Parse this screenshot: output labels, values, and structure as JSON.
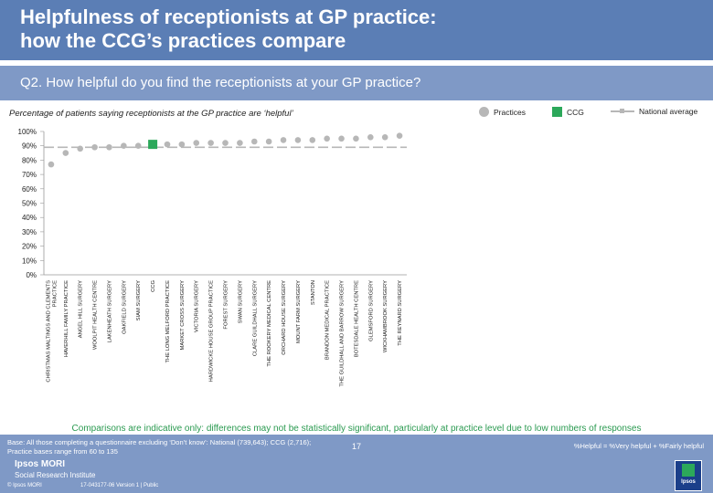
{
  "title": {
    "line1": "Helpfulness of receptionists at GP practice:",
    "line2": "how the CCG’s practices compare"
  },
  "question": "Q2. How helpful do you find the receptionists at your GP practice?",
  "subtitle": "Percentage of patients saying receptionists at the GP practice are ‘helpful’",
  "legend": {
    "practices": "Practices",
    "ccg": "CCG",
    "national": "National average"
  },
  "colors": {
    "header": "#5b7eb5",
    "qbar": "#7f99c6",
    "practice": "#b7b7b7",
    "ccg": "#2ca85a",
    "line": "#b7b7b7",
    "comparisons": "#2a9a50"
  },
  "chart_data": {
    "type": "scatter",
    "ylim": [
      0,
      100
    ],
    "yticks": [
      "0%",
      "10%",
      "20%",
      "30%",
      "40%",
      "50%",
      "60%",
      "70%",
      "80%",
      "90%",
      "100%"
    ],
    "categories": [
      [
        "CHRISTMAS MALTINGS AND CLEMENTS",
        "PRACTICE"
      ],
      [
        "HAVERHILL FAMILY PRACTICE"
      ],
      [
        "ANGEL HILL SURGERY"
      ],
      [
        "WOOLPIT HEALTH CENTRE"
      ],
      [
        "LAKENHEATH SURGERY"
      ],
      [
        "OAKFIELD SURGERY"
      ],
      [
        "SIAM SURGERY"
      ],
      [
        "CCG"
      ],
      [
        "THE LONG MELFORD PRACTICE"
      ],
      [
        "MARKET CROSS SURGERY"
      ],
      [
        "VICTORIA SURGERY"
      ],
      [
        "HARDWICKE HOUSE GROUP PRACTICE"
      ],
      [
        "FOREST SURGERY"
      ],
      [
        "SWAN SURGERY"
      ],
      [
        "CLARE GUILDHALL SURGERY"
      ],
      [
        "THE ROOKERY MEDICAL CENTRE"
      ],
      [
        "ORCHARD HOUSE SURGERY"
      ],
      [
        "MOUNT FARM SURGERY"
      ],
      [
        "STANTON"
      ],
      [
        "BRANDON MEDICAL PRACTICE"
      ],
      [
        "THE GUILDHALL AND BARROW SURGERY"
      ],
      [
        "BOTESDALE HEALTH CENTRE"
      ],
      [
        "GLEMSFORD SURGERY"
      ],
      [
        "WICKHAMBROOK SURGERY"
      ],
      [
        "THE REYNARD SURGERY"
      ]
    ],
    "values": [
      77,
      85,
      88,
      89,
      89,
      90,
      90,
      91,
      91,
      91,
      92,
      92,
      92,
      92,
      93,
      93,
      94,
      94,
      94,
      95,
      95,
      95,
      96,
      96,
      97
    ],
    "ccg_index": 7,
    "national_average": 89
  },
  "comparisons": "Comparisons are indicative only: differences may not be statistically significant, particularly at practice level due to low numbers of responses",
  "footer": {
    "base_line1": "Base: All those completing a questionnaire excluding ‘Don’t know’: National (739,643); CCG (2,716);",
    "base_line2": "Practice bases range from 60 to 135",
    "helpful_def": "%Helpful = %Very helpful + %Fairly helpful",
    "page": "17",
    "logo_line1": "Ipsos MORI",
    "logo_line2": "Social Research Institute",
    "copyright": "© Ipsos MORI",
    "ref": "17-043177-06 Version 1 | Public",
    "corner_logo": "Ipsos"
  }
}
